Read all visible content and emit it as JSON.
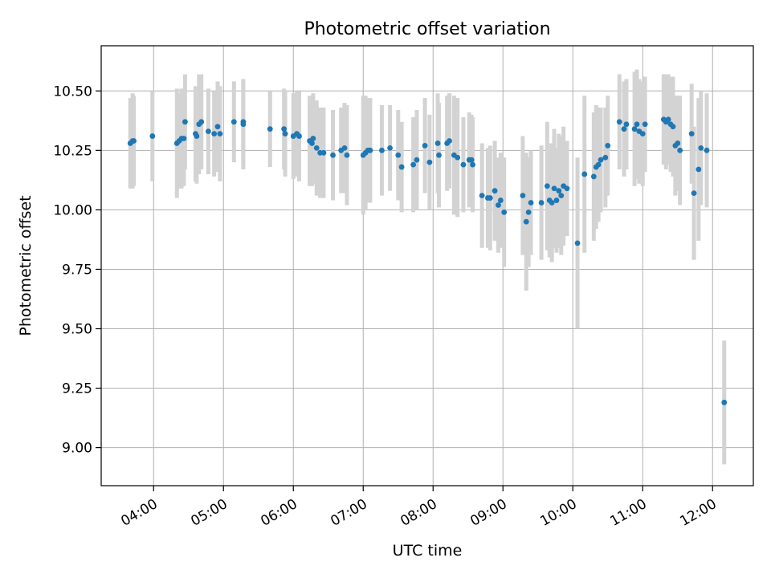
{
  "chart_data": {
    "type": "scatter",
    "title": "Photometric offset variation",
    "xlabel": "UTC time",
    "ylabel": "Photometric offset",
    "x_unit": "hours UTC",
    "xlim": [
      "03:15",
      "12:35"
    ],
    "ylim": [
      8.84,
      10.69
    ],
    "x_ticks": [
      "04:00",
      "05:00",
      "06:00",
      "07:00",
      "08:00",
      "09:00",
      "10:00",
      "11:00",
      "12:00"
    ],
    "y_ticks": [
      "9.00",
      "9.25",
      "9.50",
      "9.75",
      "10.00",
      "10.25",
      "10.50"
    ],
    "grid": true,
    "legend": "none",
    "colors": {
      "points": "#1f77b4",
      "errorbars": "#d3d3d3",
      "grid": "#b0b0b0"
    },
    "series": [
      {
        "points": [
          {
            "t": "03:40",
            "y": 10.28,
            "err": 0.19
          },
          {
            "t": "03:42",
            "y": 10.29,
            "err": 0.2
          },
          {
            "t": "03:43",
            "y": 10.29,
            "err": 0.19
          },
          {
            "t": "03:59",
            "y": 10.31,
            "err": 0.19
          },
          {
            "t": "04:20",
            "y": 10.28,
            "err": 0.23
          },
          {
            "t": "04:22",
            "y": 10.29,
            "err": 0.2
          },
          {
            "t": "04:24",
            "y": 10.3,
            "err": 0.21
          },
          {
            "t": "04:26",
            "y": 10.3,
            "err": 0.2
          },
          {
            "t": "04:27",
            "y": 10.37,
            "err": 0.2
          },
          {
            "t": "04:36",
            "y": 10.32,
            "err": 0.2
          },
          {
            "t": "04:37",
            "y": 10.31,
            "err": 0.2
          },
          {
            "t": "04:39",
            "y": 10.36,
            "err": 0.21
          },
          {
            "t": "04:41",
            "y": 10.37,
            "err": 0.2
          },
          {
            "t": "04:47",
            "y": 10.33,
            "err": 0.18
          },
          {
            "t": "04:52",
            "y": 10.32,
            "err": 0.18
          },
          {
            "t": "04:55",
            "y": 10.35,
            "err": 0.19
          },
          {
            "t": "04:57",
            "y": 10.32,
            "err": 0.2
          },
          {
            "t": "05:09",
            "y": 10.37,
            "err": 0.17
          },
          {
            "t": "05:17",
            "y": 10.37,
            "err": 0.18
          },
          {
            "t": "05:17",
            "y": 10.36,
            "err": 0.19
          },
          {
            "t": "05:40",
            "y": 10.34,
            "err": 0.16
          },
          {
            "t": "05:52",
            "y": 10.34,
            "err": 0.17
          },
          {
            "t": "05:53",
            "y": 10.32,
            "err": 0.18
          },
          {
            "t": "06:00",
            "y": 10.31,
            "err": 0.18
          },
          {
            "t": "06:03",
            "y": 10.32,
            "err": 0.18
          },
          {
            "t": "06:05",
            "y": 10.31,
            "err": 0.19
          },
          {
            "t": "06:14",
            "y": 10.29,
            "err": 0.19
          },
          {
            "t": "06:16",
            "y": 10.28,
            "err": 0.18
          },
          {
            "t": "06:17",
            "y": 10.3,
            "err": 0.19
          },
          {
            "t": "06:20",
            "y": 10.26,
            "err": 0.2
          },
          {
            "t": "06:23",
            "y": 10.24,
            "err": 0.19
          },
          {
            "t": "06:26",
            "y": 10.24,
            "err": 0.19
          },
          {
            "t": "06:34",
            "y": 10.23,
            "err": 0.19
          },
          {
            "t": "06:41",
            "y": 10.25,
            "err": 0.18
          },
          {
            "t": "06:44",
            "y": 10.26,
            "err": 0.19
          },
          {
            "t": "06:46",
            "y": 10.23,
            "err": 0.21
          },
          {
            "t": "07:00",
            "y": 10.23,
            "err": 0.25
          },
          {
            "t": "07:02",
            "y": 10.24,
            "err": 0.24
          },
          {
            "t": "07:04",
            "y": 10.25,
            "err": 0.22
          },
          {
            "t": "07:06",
            "y": 10.25,
            "err": 0.22
          },
          {
            "t": "07:16",
            "y": 10.25,
            "err": 0.19
          },
          {
            "t": "07:23",
            "y": 10.26,
            "err": 0.18
          },
          {
            "t": "07:30",
            "y": 10.23,
            "err": 0.19
          },
          {
            "t": "07:33",
            "y": 10.18,
            "err": 0.19
          },
          {
            "t": "07:43",
            "y": 10.19,
            "err": 0.2
          },
          {
            "t": "07:46",
            "y": 10.21,
            "err": 0.21
          },
          {
            "t": "07:53",
            "y": 10.27,
            "err": 0.2
          },
          {
            "t": "07:57",
            "y": 10.2,
            "err": 0.2
          },
          {
            "t": "08:04",
            "y": 10.28,
            "err": 0.21
          },
          {
            "t": "08:05",
            "y": 10.23,
            "err": 0.22
          },
          {
            "t": "08:12",
            "y": 10.28,
            "err": 0.2
          },
          {
            "t": "08:14",
            "y": 10.29,
            "err": 0.2
          },
          {
            "t": "08:18",
            "y": 10.23,
            "err": 0.25
          },
          {
            "t": "08:21",
            "y": 10.22,
            "err": 0.25
          },
          {
            "t": "08:26",
            "y": 10.19,
            "err": 0.2
          },
          {
            "t": "08:31",
            "y": 10.21,
            "err": 0.2
          },
          {
            "t": "08:33",
            "y": 10.21,
            "err": 0.19
          },
          {
            "t": "08:34",
            "y": 10.19,
            "err": 0.2
          },
          {
            "t": "08:42",
            "y": 10.06,
            "err": 0.22
          },
          {
            "t": "08:47",
            "y": 10.05,
            "err": 0.21
          },
          {
            "t": "08:49",
            "y": 10.05,
            "err": 0.22
          },
          {
            "t": "08:53",
            "y": 10.08,
            "err": 0.21
          },
          {
            "t": "08:56",
            "y": 10.02,
            "err": 0.2
          },
          {
            "t": "08:58",
            "y": 10.04,
            "err": 0.2
          },
          {
            "t": "09:01",
            "y": 9.99,
            "err": 0.23
          },
          {
            "t": "09:17",
            "y": 10.06,
            "err": 0.25
          },
          {
            "t": "09:20",
            "y": 9.95,
            "err": 0.29
          },
          {
            "t": "09:22",
            "y": 9.99,
            "err": 0.23
          },
          {
            "t": "09:24",
            "y": 10.03,
            "err": 0.22
          },
          {
            "t": "09:33",
            "y": 10.03,
            "err": 0.24
          },
          {
            "t": "09:38",
            "y": 10.1,
            "err": 0.27
          },
          {
            "t": "09:40",
            "y": 10.04,
            "err": 0.24
          },
          {
            "t": "09:42",
            "y": 10.03,
            "err": 0.25
          },
          {
            "t": "09:44",
            "y": 10.09,
            "err": 0.25
          },
          {
            "t": "09:46",
            "y": 10.04,
            "err": 0.22
          },
          {
            "t": "09:48",
            "y": 10.08,
            "err": 0.24
          },
          {
            "t": "09:50",
            "y": 10.06,
            "err": 0.25
          },
          {
            "t": "09:52",
            "y": 10.1,
            "err": 0.25
          },
          {
            "t": "09:55",
            "y": 10.09,
            "err": 0.2
          },
          {
            "t": "10:04",
            "y": 9.86,
            "err": 0.36
          },
          {
            "t": "10:10",
            "y": 10.15,
            "err": 0.33
          },
          {
            "t": "10:18",
            "y": 10.14,
            "err": 0.27
          },
          {
            "t": "10:20",
            "y": 10.18,
            "err": 0.26
          },
          {
            "t": "10:22",
            "y": 10.19,
            "err": 0.24
          },
          {
            "t": "10:24",
            "y": 10.21,
            "err": 0.22
          },
          {
            "t": "10:28",
            "y": 10.22,
            "err": 0.21
          },
          {
            "t": "10:30",
            "y": 10.27,
            "err": 0.21
          },
          {
            "t": "10:40",
            "y": 10.37,
            "err": 0.2
          },
          {
            "t": "10:44",
            "y": 10.34,
            "err": 0.2
          },
          {
            "t": "10:46",
            "y": 10.36,
            "err": 0.19
          },
          {
            "t": "10:53",
            "y": 10.34,
            "err": 0.24
          },
          {
            "t": "10:55",
            "y": 10.36,
            "err": 0.23
          },
          {
            "t": "10:57",
            "y": 10.33,
            "err": 0.22
          },
          {
            "t": "11:00",
            "y": 10.32,
            "err": 0.22
          },
          {
            "t": "11:02",
            "y": 10.36,
            "err": 0.2
          },
          {
            "t": "11:18",
            "y": 10.38,
            "err": 0.19
          },
          {
            "t": "11:20",
            "y": 10.37,
            "err": 0.2
          },
          {
            "t": "11:22",
            "y": 10.38,
            "err": 0.19
          },
          {
            "t": "11:24",
            "y": 10.36,
            "err": 0.2
          },
          {
            "t": "11:26",
            "y": 10.35,
            "err": 0.21
          },
          {
            "t": "11:28",
            "y": 10.27,
            "err": 0.21
          },
          {
            "t": "11:30",
            "y": 10.28,
            "err": 0.2
          },
          {
            "t": "11:32",
            "y": 10.25,
            "err": 0.23
          },
          {
            "t": "11:42",
            "y": 10.32,
            "err": 0.21
          },
          {
            "t": "11:44",
            "y": 10.07,
            "err": 0.28
          },
          {
            "t": "11:48",
            "y": 10.17,
            "err": 0.3
          },
          {
            "t": "11:50",
            "y": 10.26,
            "err": 0.24
          },
          {
            "t": "11:55",
            "y": 10.25,
            "err": 0.24
          },
          {
            "t": "12:10",
            "y": 9.19,
            "err": 0.26
          }
        ]
      }
    ]
  }
}
